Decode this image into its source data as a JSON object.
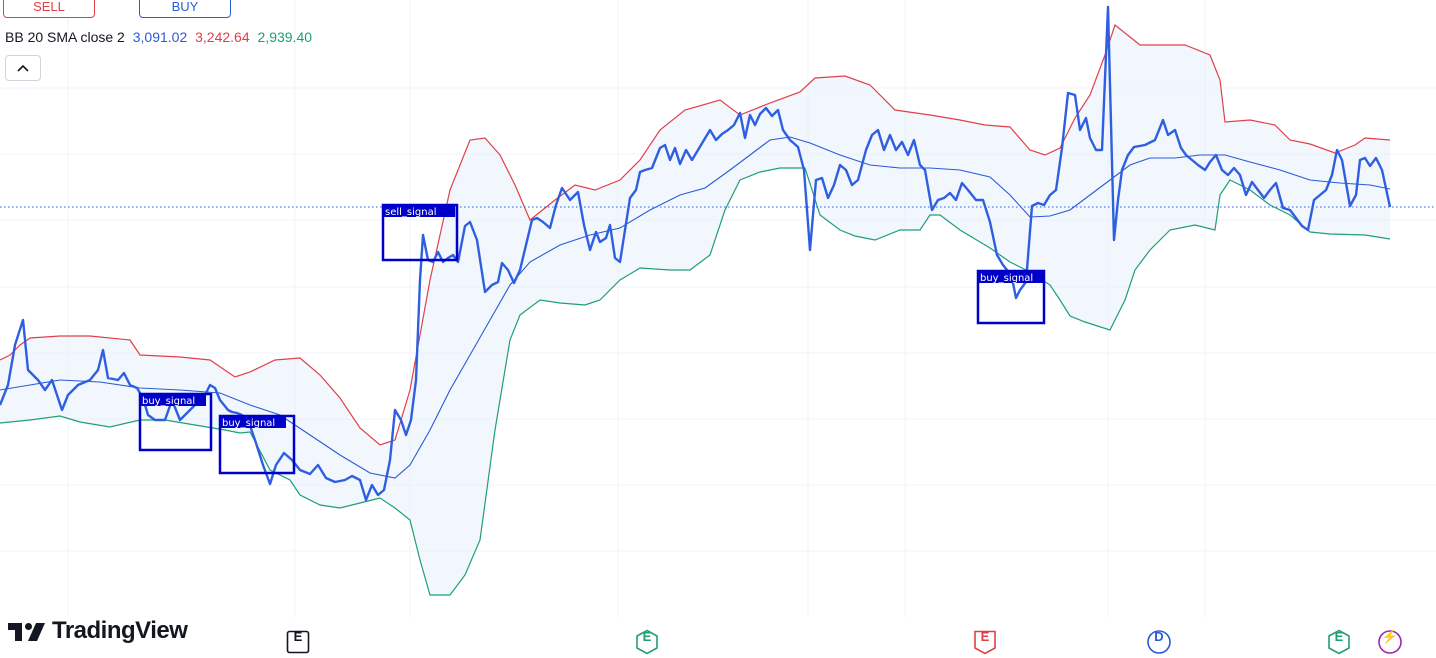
{
  "toolbar": {
    "sell_label": "SELL",
    "buy_label": "BUY"
  },
  "legend": {
    "title": "BB 20 SMA close 2",
    "basis": "3,091.02",
    "upper": "3,242.64",
    "lower": "2,939.40",
    "colors": {
      "title": "#131722",
      "basis": "#2a5bd7",
      "upper": "#e0404a",
      "lower": "#1f9e78"
    }
  },
  "logo": {
    "text": "TradingView"
  },
  "events": [
    {
      "label": "E",
      "type": "earnings",
      "color": "#131722"
    },
    {
      "label": "E",
      "type": "earnings",
      "color": "#1f9e78"
    },
    {
      "label": "E",
      "type": "earnings",
      "color": "#e0404a"
    },
    {
      "label": "D",
      "type": "dividend",
      "color": "#2a5bd7"
    },
    {
      "label": "E",
      "type": "earnings",
      "color": "#1f9e78"
    },
    {
      "label": "⚡",
      "type": "news",
      "color": "#9c27b0"
    }
  ],
  "chart_data": {
    "type": "line",
    "title": "BB 20 SMA close 2",
    "grid": true,
    "signal_label_color": "#0000c8",
    "colors": {
      "price": "#2f5fe0",
      "basis": "#2a5bd7",
      "upper": "#e0404a",
      "lower": "#1f9e78",
      "fill": "#e6f1fa"
    },
    "signals": [
      {
        "label": "buy_signal",
        "type": "buy"
      },
      {
        "label": "buy_signal",
        "type": "buy"
      },
      {
        "label": "sell_signal",
        "type": "sell"
      },
      {
        "label": "buy_signal",
        "type": "buy"
      }
    ]
  }
}
